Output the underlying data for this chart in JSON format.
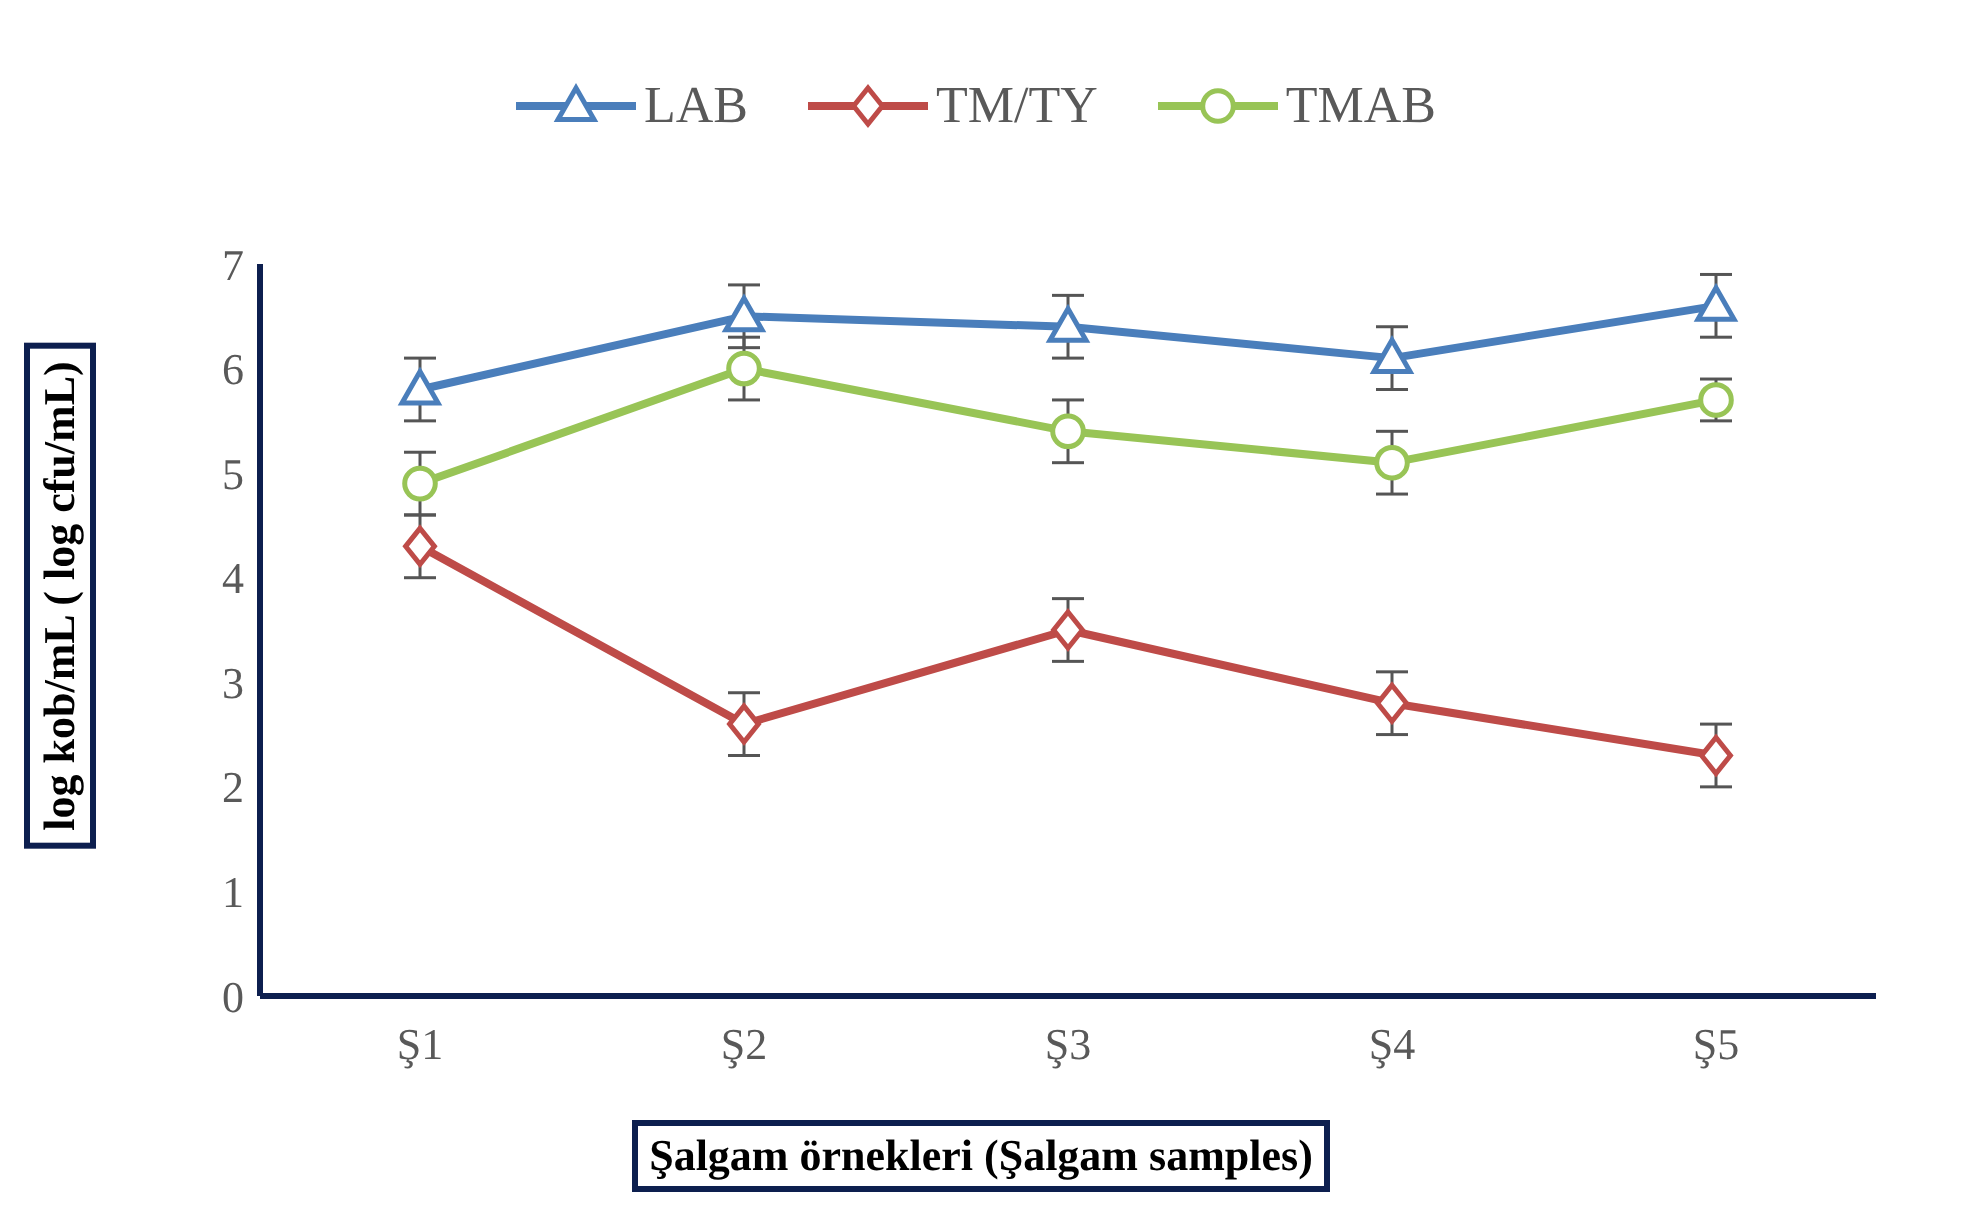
{
  "chart_data": {
    "type": "line",
    "xlabel": "Şalgam örnekleri (Şalgam samples)",
    "ylabel": "log kob/mL ( log cfu/mL)",
    "categories": [
      "Ş1",
      "Ş2",
      "Ş3",
      "Ş4",
      "Ş5"
    ],
    "ylim": [
      0,
      7
    ],
    "yticks": [
      0,
      1,
      2,
      3,
      4,
      5,
      6,
      7
    ],
    "legend": "top",
    "series": [
      {
        "name": "LAB",
        "color": "#4a7ebb",
        "marker": "triangle",
        "values": [
          5.8,
          6.5,
          6.4,
          6.1,
          6.6
        ],
        "errors": [
          0.3,
          0.3,
          0.3,
          0.3,
          0.3
        ]
      },
      {
        "name": "TM/TY",
        "color": "#be4b48",
        "marker": "diamond",
        "values": [
          4.3,
          2.6,
          3.5,
          2.8,
          2.3
        ],
        "errors": [
          0.3,
          0.3,
          0.3,
          0.3,
          0.3
        ]
      },
      {
        "name": "TMAB",
        "color": "#98c456",
        "marker": "circle",
        "values": [
          4.9,
          6.0,
          5.4,
          5.1,
          5.7
        ],
        "errors": [
          0.3,
          0.3,
          0.3,
          0.3,
          0.2
        ]
      }
    ]
  }
}
